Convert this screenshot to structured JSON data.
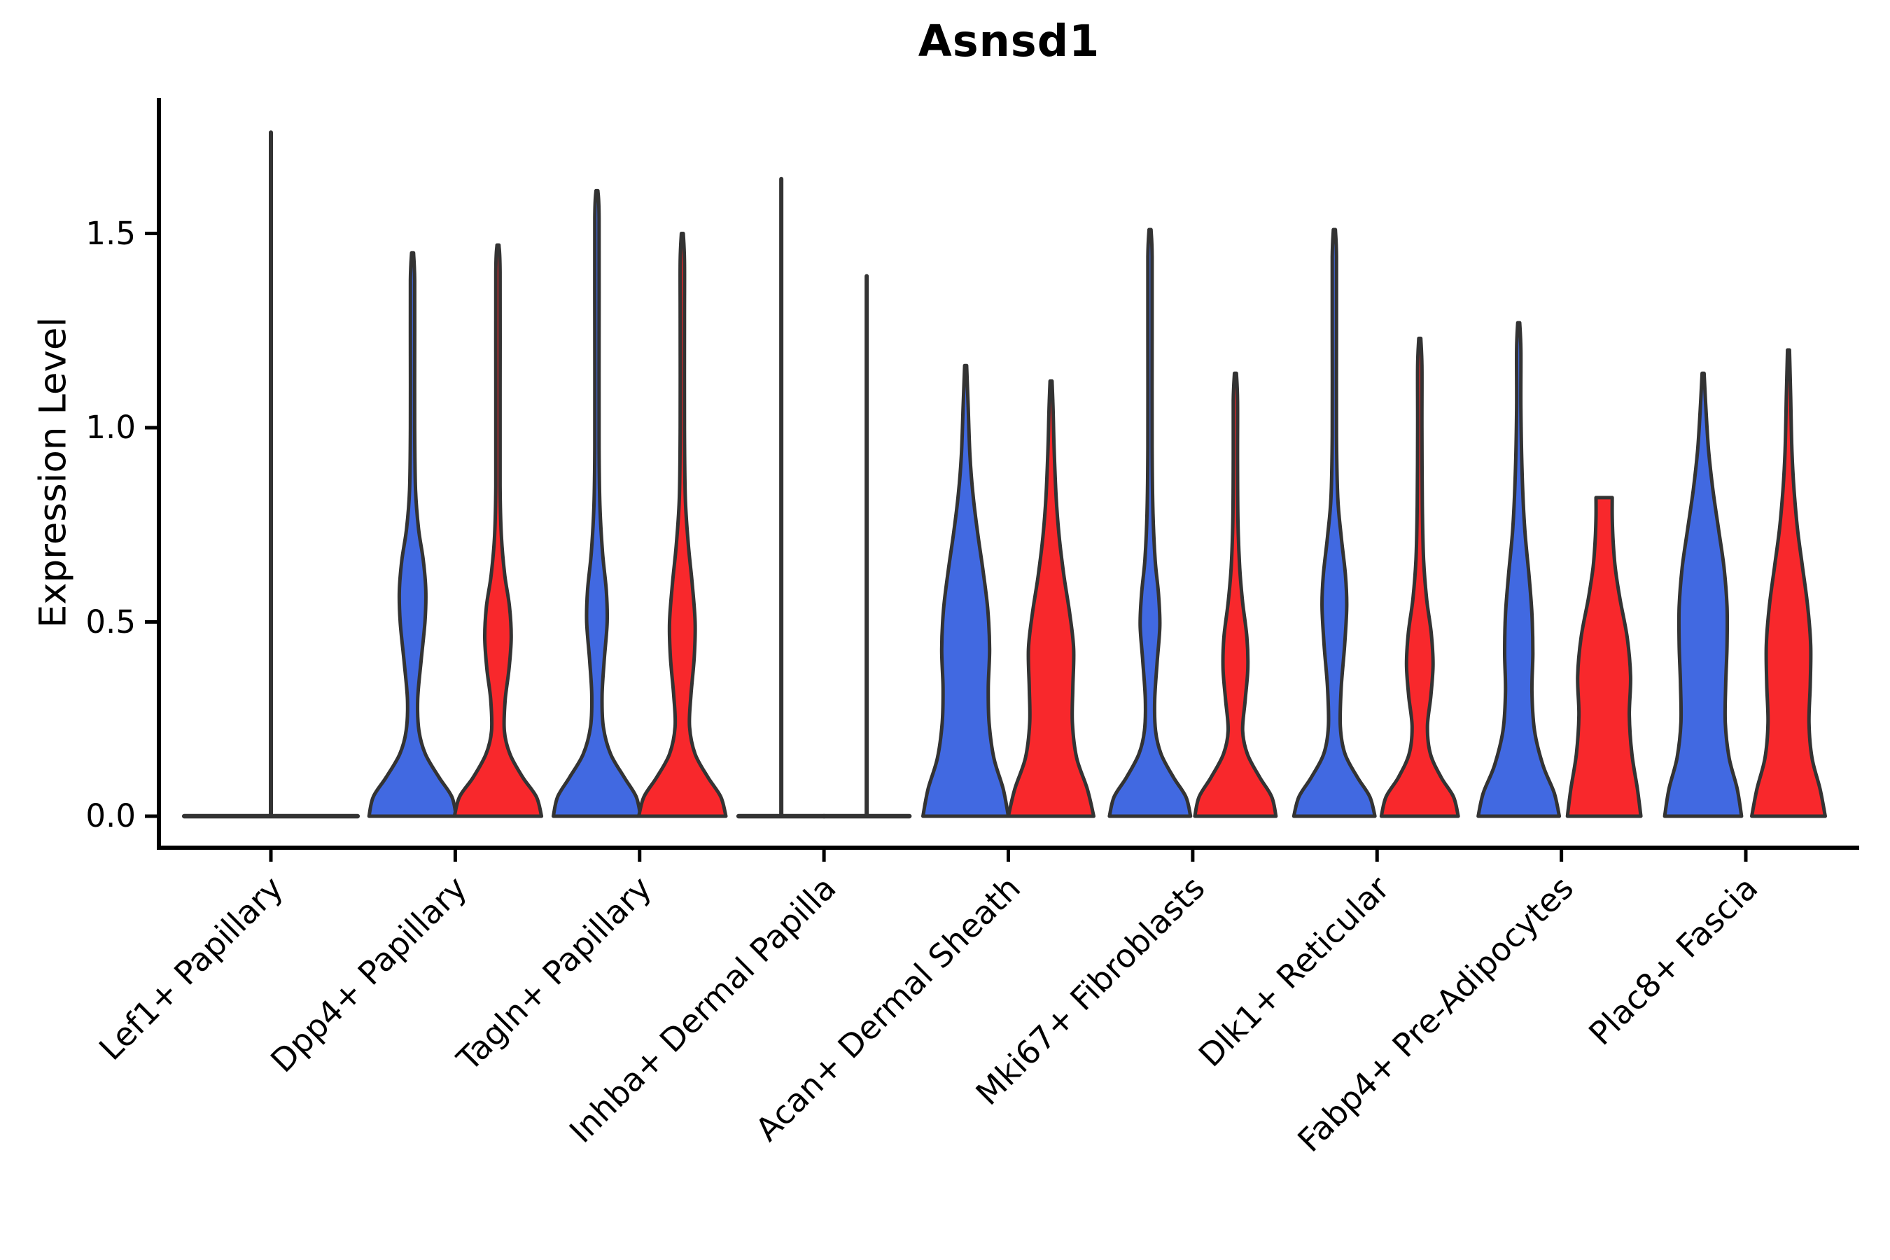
{
  "title": "Asnsd1",
  "chart_data": {
    "type": "violin",
    "title": "Asnsd1",
    "ylabel": "Expression Level",
    "ylim": [
      -0.08,
      1.85
    ],
    "yticks": [
      {
        "value": 0.0,
        "label": "0.0"
      },
      {
        "value": 0.5,
        "label": "0.5"
      },
      {
        "value": 1.0,
        "label": "1.0"
      },
      {
        "value": 1.5,
        "label": "1.5"
      }
    ],
    "x_tick_rotation_deg": 45,
    "legend": "none",
    "grid": false,
    "categories": [
      "Lef1+ Papillary",
      "Dpp4+ Papillary",
      "Tagln+ Papillary",
      "Inhba+ Dermal Papilla",
      "Acan+ Dermal Sheath",
      "Mki67+ Fibroblasts",
      "Dlk1+ Reticular",
      "Fabp4+ Pre-Adipocytes",
      "Plac8+ Fascia"
    ],
    "groups": [
      {
        "id": "blue",
        "color": "#4169E1"
      },
      {
        "id": "red",
        "color": "#F8282C"
      }
    ],
    "style": {
      "outline_color": "#333333",
      "outline_width": 5,
      "axis_color": "#000000",
      "background": "#ffffff"
    },
    "violins": [
      {
        "category": "Lef1+ Papillary",
        "group": null,
        "position": "center",
        "shape": "flat-spike",
        "span_frac": 2.03,
        "max_value": 1.76
      },
      {
        "category": "Dpp4+ Papillary",
        "group": "blue",
        "position": "left",
        "shape": "kde",
        "max_value": 1.45,
        "profile": [
          [
            0,
            1.02
          ],
          [
            0.05,
            0.92
          ],
          [
            0.1,
            0.62
          ],
          [
            0.16,
            0.3
          ],
          [
            0.22,
            0.15
          ],
          [
            0.3,
            0.12
          ],
          [
            0.4,
            0.2
          ],
          [
            0.5,
            0.29
          ],
          [
            0.58,
            0.31
          ],
          [
            0.66,
            0.25
          ],
          [
            0.74,
            0.14
          ],
          [
            0.84,
            0.07
          ],
          [
            1.0,
            0.05
          ],
          [
            1.2,
            0.05
          ],
          [
            1.38,
            0.05
          ]
        ]
      },
      {
        "category": "Dpp4+ Papillary",
        "group": "red",
        "position": "right",
        "shape": "kde",
        "max_value": 1.47,
        "profile": [
          [
            0,
            1.02
          ],
          [
            0.05,
            0.9
          ],
          [
            0.1,
            0.58
          ],
          [
            0.16,
            0.28
          ],
          [
            0.22,
            0.15
          ],
          [
            0.3,
            0.17
          ],
          [
            0.38,
            0.26
          ],
          [
            0.46,
            0.31
          ],
          [
            0.54,
            0.27
          ],
          [
            0.62,
            0.16
          ],
          [
            0.72,
            0.08
          ],
          [
            0.85,
            0.05
          ],
          [
            1.1,
            0.05
          ],
          [
            1.4,
            0.05
          ]
        ]
      },
      {
        "category": "Tagln+ Papillary",
        "group": "blue",
        "position": "left",
        "shape": "kde",
        "max_value": 1.61,
        "profile": [
          [
            0,
            1.02
          ],
          [
            0.05,
            0.92
          ],
          [
            0.1,
            0.64
          ],
          [
            0.16,
            0.32
          ],
          [
            0.23,
            0.15
          ],
          [
            0.31,
            0.12
          ],
          [
            0.4,
            0.17
          ],
          [
            0.5,
            0.24
          ],
          [
            0.58,
            0.22
          ],
          [
            0.68,
            0.13
          ],
          [
            0.8,
            0.07
          ],
          [
            0.95,
            0.05
          ],
          [
            1.25,
            0.05
          ],
          [
            1.54,
            0.05
          ]
        ]
      },
      {
        "category": "Tagln+ Papillary",
        "group": "red",
        "position": "right",
        "shape": "kde",
        "max_value": 1.5,
        "profile": [
          [
            0,
            1.02
          ],
          [
            0.05,
            0.9
          ],
          [
            0.1,
            0.6
          ],
          [
            0.16,
            0.3
          ],
          [
            0.23,
            0.17
          ],
          [
            0.31,
            0.2
          ],
          [
            0.41,
            0.28
          ],
          [
            0.5,
            0.3
          ],
          [
            0.6,
            0.23
          ],
          [
            0.7,
            0.14
          ],
          [
            0.82,
            0.07
          ],
          [
            1.0,
            0.05
          ],
          [
            1.28,
            0.05
          ],
          [
            1.43,
            0.05
          ]
        ]
      },
      {
        "category": "Inhba+ Dermal Papilla",
        "group": "blue",
        "position": "left",
        "shape": "flat-spike",
        "span_frac": 1.0,
        "max_value": 1.64
      },
      {
        "category": "Inhba+ Dermal Papilla",
        "group": "red",
        "position": "right",
        "shape": "flat-spike",
        "span_frac": 1.0,
        "max_value": 1.39
      },
      {
        "category": "Acan+ Dermal Sheath",
        "group": "blue",
        "position": "left",
        "shape": "kde",
        "max_value": 1.16,
        "profile": [
          [
            0,
            1.0
          ],
          [
            0.07,
            0.88
          ],
          [
            0.15,
            0.66
          ],
          [
            0.24,
            0.55
          ],
          [
            0.33,
            0.53
          ],
          [
            0.43,
            0.56
          ],
          [
            0.53,
            0.52
          ],
          [
            0.63,
            0.41
          ],
          [
            0.73,
            0.28
          ],
          [
            0.83,
            0.17
          ],
          [
            0.93,
            0.1
          ],
          [
            1.05,
            0.06
          ]
        ]
      },
      {
        "category": "Acan+ Dermal Sheath",
        "group": "red",
        "position": "right",
        "shape": "kde",
        "max_value": 1.12,
        "profile": [
          [
            0,
            1.0
          ],
          [
            0.07,
            0.85
          ],
          [
            0.15,
            0.6
          ],
          [
            0.24,
            0.5
          ],
          [
            0.33,
            0.51
          ],
          [
            0.43,
            0.53
          ],
          [
            0.52,
            0.44
          ],
          [
            0.62,
            0.3
          ],
          [
            0.72,
            0.19
          ],
          [
            0.82,
            0.12
          ],
          [
            0.95,
            0.07
          ],
          [
            1.04,
            0.05
          ]
        ]
      },
      {
        "category": "Mki67+ Fibroblasts",
        "group": "blue",
        "position": "left",
        "shape": "kde",
        "max_value": 1.51,
        "profile": [
          [
            0,
            0.95
          ],
          [
            0.05,
            0.84
          ],
          [
            0.1,
            0.55
          ],
          [
            0.16,
            0.26
          ],
          [
            0.22,
            0.13
          ],
          [
            0.3,
            0.11
          ],
          [
            0.4,
            0.17
          ],
          [
            0.49,
            0.23
          ],
          [
            0.57,
            0.2
          ],
          [
            0.66,
            0.12
          ],
          [
            0.78,
            0.07
          ],
          [
            0.95,
            0.05
          ],
          [
            1.25,
            0.05
          ],
          [
            1.44,
            0.05
          ]
        ]
      },
      {
        "category": "Mki67+ Fibroblasts",
        "group": "red",
        "position": "right",
        "shape": "kde",
        "max_value": 1.14,
        "profile": [
          [
            0,
            0.95
          ],
          [
            0.05,
            0.85
          ],
          [
            0.1,
            0.57
          ],
          [
            0.16,
            0.28
          ],
          [
            0.22,
            0.17
          ],
          [
            0.3,
            0.23
          ],
          [
            0.38,
            0.29
          ],
          [
            0.46,
            0.27
          ],
          [
            0.55,
            0.17
          ],
          [
            0.64,
            0.1
          ],
          [
            0.76,
            0.06
          ],
          [
            0.92,
            0.05
          ],
          [
            1.07,
            0.05
          ]
        ]
      },
      {
        "category": "Dlk1+ Reticular",
        "group": "blue",
        "position": "left",
        "shape": "kde",
        "max_value": 1.51,
        "profile": [
          [
            0,
            0.95
          ],
          [
            0.05,
            0.83
          ],
          [
            0.1,
            0.54
          ],
          [
            0.16,
            0.25
          ],
          [
            0.23,
            0.14
          ],
          [
            0.33,
            0.16
          ],
          [
            0.44,
            0.24
          ],
          [
            0.54,
            0.29
          ],
          [
            0.62,
            0.26
          ],
          [
            0.72,
            0.16
          ],
          [
            0.82,
            0.08
          ],
          [
            0.98,
            0.05
          ],
          [
            1.25,
            0.05
          ],
          [
            1.44,
            0.05
          ]
        ]
      },
      {
        "category": "Dlk1+ Reticular",
        "group": "red",
        "position": "right",
        "shape": "kde",
        "max_value": 1.23,
        "profile": [
          [
            0,
            0.9
          ],
          [
            0.05,
            0.79
          ],
          [
            0.1,
            0.5
          ],
          [
            0.16,
            0.25
          ],
          [
            0.23,
            0.18
          ],
          [
            0.31,
            0.26
          ],
          [
            0.39,
            0.31
          ],
          [
            0.47,
            0.27
          ],
          [
            0.56,
            0.16
          ],
          [
            0.66,
            0.09
          ],
          [
            0.8,
            0.06
          ],
          [
            1.0,
            0.05
          ],
          [
            1.16,
            0.05
          ]
        ]
      },
      {
        "category": "Fabp4+ Pre-Adipocytes",
        "group": "blue",
        "position": "left",
        "shape": "kde",
        "max_value": 1.27,
        "profile": [
          [
            0,
            0.95
          ],
          [
            0.06,
            0.83
          ],
          [
            0.13,
            0.57
          ],
          [
            0.22,
            0.37
          ],
          [
            0.32,
            0.31
          ],
          [
            0.42,
            0.33
          ],
          [
            0.52,
            0.31
          ],
          [
            0.62,
            0.24
          ],
          [
            0.74,
            0.14
          ],
          [
            0.88,
            0.08
          ],
          [
            1.05,
            0.05
          ],
          [
            1.2,
            0.05
          ]
        ]
      },
      {
        "category": "Fabp4+ Pre-Adipocytes",
        "group": "red",
        "position": "right",
        "shape": "kde",
        "flat_top": true,
        "max_value": 0.82,
        "profile": [
          [
            0,
            0.86
          ],
          [
            0.07,
            0.78
          ],
          [
            0.16,
            0.65
          ],
          [
            0.26,
            0.59
          ],
          [
            0.36,
            0.62
          ],
          [
            0.46,
            0.54
          ],
          [
            0.56,
            0.37
          ],
          [
            0.64,
            0.26
          ],
          [
            0.71,
            0.21
          ],
          [
            0.77,
            0.19
          ],
          [
            0.82,
            0.19
          ]
        ]
      },
      {
        "category": "Plac8+ Fascia",
        "group": "blue",
        "position": "left",
        "shape": "kde",
        "max_value": 1.14,
        "profile": [
          [
            0,
            0.9
          ],
          [
            0.07,
            0.8
          ],
          [
            0.15,
            0.61
          ],
          [
            0.24,
            0.52
          ],
          [
            0.34,
            0.53
          ],
          [
            0.44,
            0.56
          ],
          [
            0.54,
            0.56
          ],
          [
            0.64,
            0.49
          ],
          [
            0.74,
            0.36
          ],
          [
            0.84,
            0.23
          ],
          [
            0.94,
            0.13
          ],
          [
            1.04,
            0.07
          ]
        ]
      },
      {
        "category": "Plac8+ Fascia",
        "group": "red",
        "position": "right",
        "shape": "kde",
        "max_value": 1.2,
        "profile": [
          [
            0,
            0.86
          ],
          [
            0.07,
            0.74
          ],
          [
            0.15,
            0.55
          ],
          [
            0.24,
            0.48
          ],
          [
            0.34,
            0.51
          ],
          [
            0.44,
            0.52
          ],
          [
            0.54,
            0.45
          ],
          [
            0.64,
            0.33
          ],
          [
            0.74,
            0.21
          ],
          [
            0.84,
            0.13
          ],
          [
            0.94,
            0.08
          ],
          [
            1.08,
            0.05
          ]
        ]
      }
    ]
  }
}
